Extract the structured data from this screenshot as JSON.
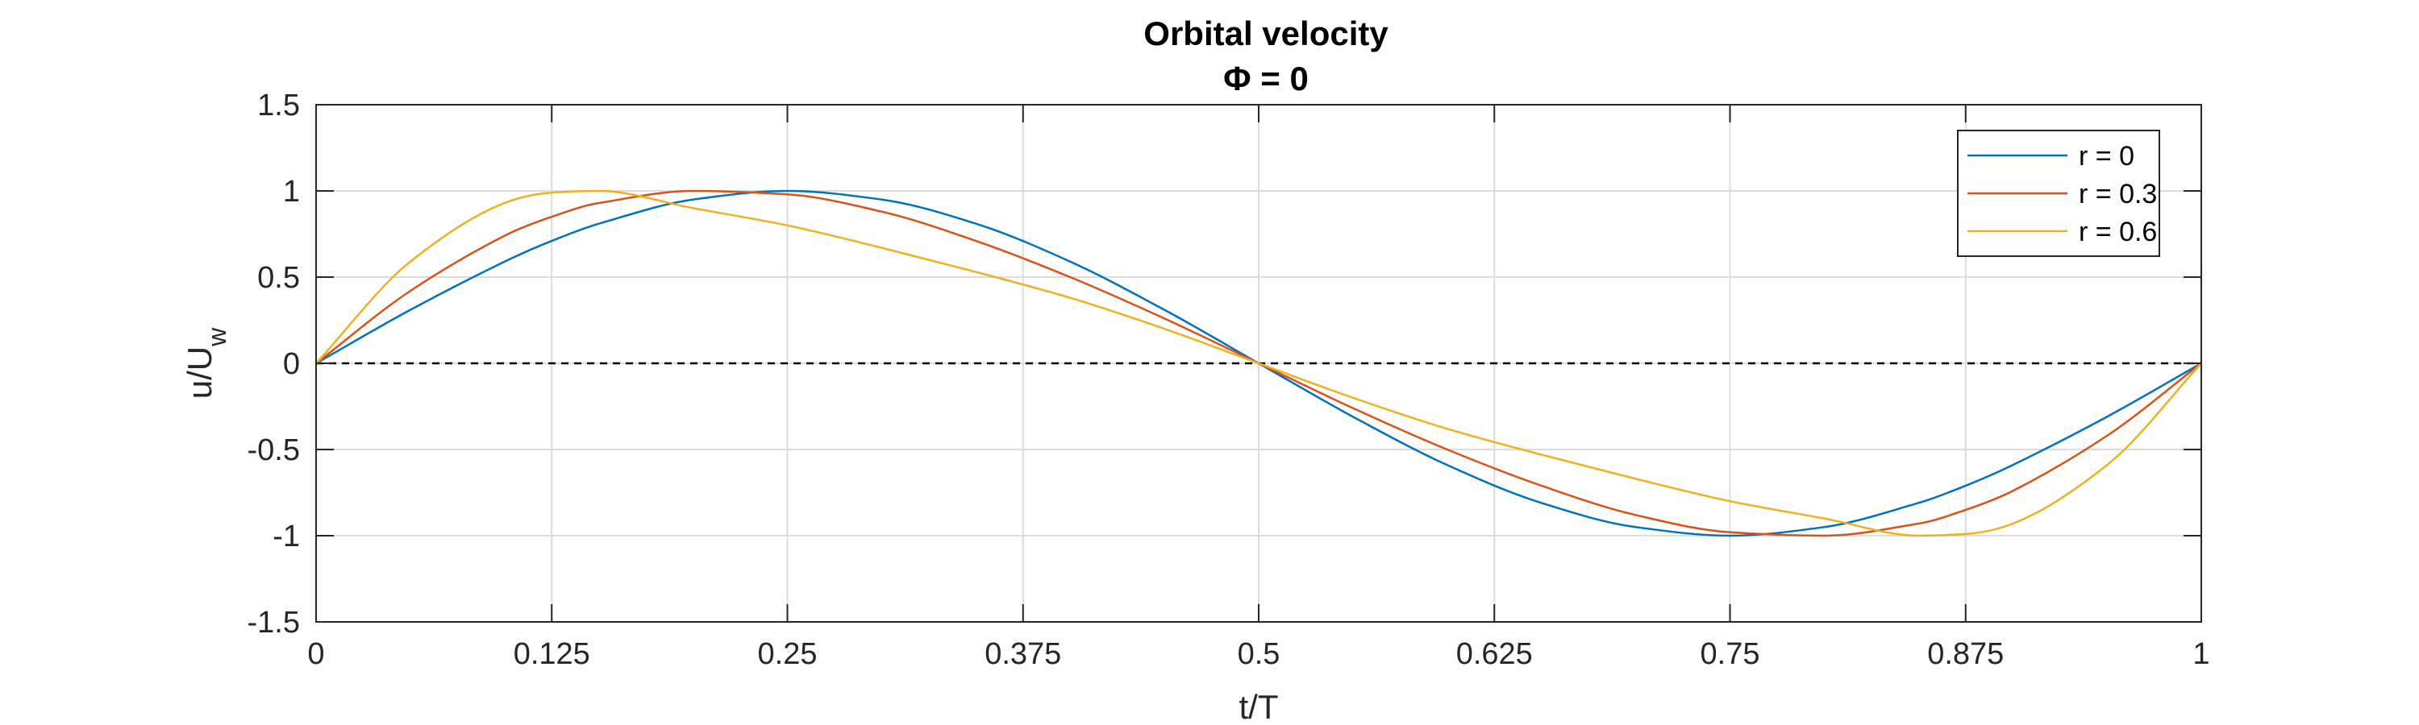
{
  "chart_data": {
    "type": "line",
    "title": "Orbital velocity",
    "subtitle": "Φ = 0",
    "xlabel": "t/T",
    "ylabel": "u/U",
    "ylabel_subscript": "w",
    "xlim": [
      0,
      1
    ],
    "ylim": [
      -1.5,
      1.5
    ],
    "xticks": [
      0,
      0.125,
      0.25,
      0.375,
      0.5,
      0.625,
      0.75,
      0.875,
      1
    ],
    "xtick_labels": [
      "0",
      "0.125",
      "0.25",
      "0.375",
      "0.5",
      "0.625",
      "0.75",
      "0.875",
      "1"
    ],
    "yticks": [
      -1.5,
      -1,
      -0.5,
      0,
      0.5,
      1,
      1.5
    ],
    "ytick_labels": [
      "-1.5",
      "-1",
      "-0.5",
      "0",
      "0.5",
      "1",
      "1.5"
    ],
    "grid": true,
    "legend_position": "top-right",
    "reference_line": {
      "y": 0,
      "style": "dashed",
      "color": "#000000"
    },
    "x": [
      0,
      0.05,
      0.1,
      0.125,
      0.15,
      0.2,
      0.25,
      0.3,
      0.35,
      0.4,
      0.45,
      0.5,
      0.55,
      0.6,
      0.65,
      0.7,
      0.75,
      0.8,
      0.85,
      0.875,
      0.9,
      0.95,
      1
    ],
    "series": [
      {
        "name": "r = 0",
        "color": "#0072BD",
        "values": [
          0,
          0.31,
          0.59,
          0.71,
          0.81,
          0.95,
          1,
          0.95,
          0.81,
          0.59,
          0.31,
          0,
          -0.31,
          -0.59,
          -0.81,
          -0.95,
          -1,
          -0.95,
          -0.81,
          -0.71,
          -0.59,
          -0.31,
          0
        ]
      },
      {
        "name": "r = 0.3",
        "color": "#D95319",
        "values": [
          0,
          0.42,
          0.74,
          0.85,
          0.93,
          1,
          0.98,
          0.88,
          0.71,
          0.5,
          0.26,
          0,
          -0.26,
          -0.5,
          -0.71,
          -0.88,
          -0.98,
          -1,
          -0.93,
          -0.85,
          -0.74,
          -0.42,
          0
        ]
      },
      {
        "name": "r = 0.6",
        "color": "#EDB120",
        "values": [
          0,
          0.59,
          0.93,
          0.99,
          1,
          0.9,
          0.8,
          0.67,
          0.53,
          0.38,
          0.2,
          0,
          -0.2,
          -0.38,
          -0.53,
          -0.67,
          -0.8,
          -0.9,
          -1,
          -0.99,
          -0.93,
          -0.59,
          0
        ]
      }
    ]
  }
}
